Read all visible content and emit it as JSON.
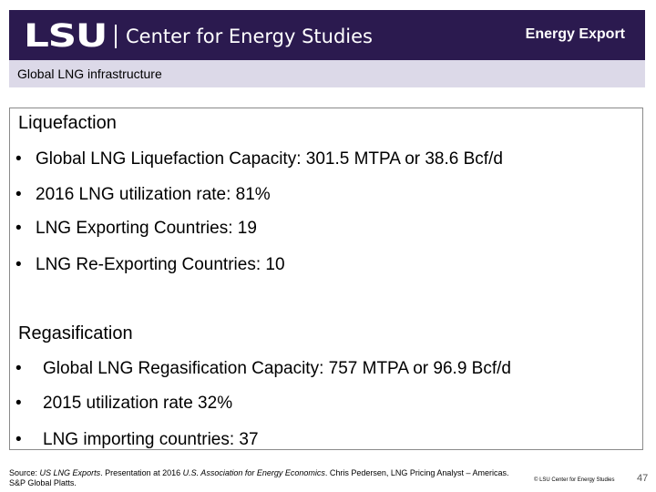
{
  "header": {
    "logo_mark": "LSU",
    "logo_text": "Center for Energy Studies",
    "title": "Energy Export"
  },
  "subheader": {
    "title": "Global LNG infrastructure"
  },
  "sections": [
    {
      "heading": "Liquefaction",
      "bullets": [
        "Global LNG Liquefaction Capacity: 301.5 MTPA or 38.6 Bcf/d",
        "2016 LNG utilization rate: 81%",
        "LNG Exporting Countries: 19",
        "LNG Re-Exporting Countries: 10"
      ]
    },
    {
      "heading": "Regasification",
      "bullets": [
        "Global LNG Regasification Capacity: 757 MTPA or 96.9 Bcf/d",
        "2015 utilization rate 32%",
        "LNG importing countries: 37"
      ]
    }
  ],
  "bullet_symbol": "•",
  "footer": {
    "source_label": "Source:",
    "source_title": "US LNG Exports",
    "source_mid": ". Presentation at 2016 ",
    "source_org": "U.S. Association for Energy Economics",
    "source_rest": ". Chris Pedersen, LNG Pricing Analyst – Americas.",
    "source_line2": "S&P Global Platts.",
    "brand": "© LSU Center for Energy Studies",
    "page_number": "47"
  },
  "colors": {
    "header_bg": "#2b1a4f",
    "subheader_bg": "#dcd9e8"
  }
}
